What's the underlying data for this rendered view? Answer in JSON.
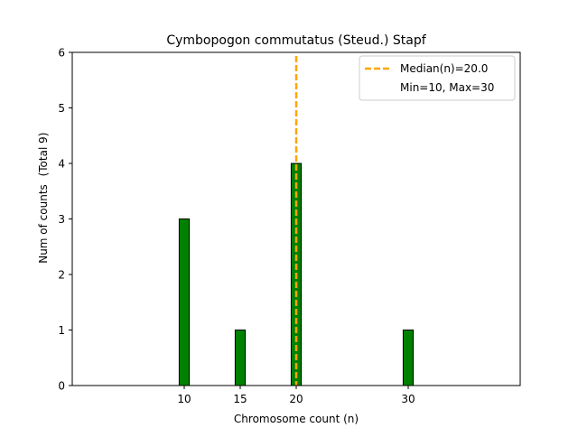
{
  "chart_data": {
    "type": "bar",
    "title": "Cymbopogon commutatus (Steud.) Stapf",
    "xlabel": "Chromosome count (n)",
    "ylabel": "Num of counts",
    "ylabel_extra": "(Total 9)",
    "xlim": [
      0,
      40
    ],
    "ylim": [
      0,
      6
    ],
    "x_ticks": [
      10,
      15,
      20,
      30
    ],
    "y_ticks": [
      0,
      1,
      2,
      3,
      4,
      5,
      6
    ],
    "bar_width": 0.9,
    "bars": [
      {
        "x": 10,
        "value": 3
      },
      {
        "x": 15,
        "value": 1
      },
      {
        "x": 20,
        "value": 4
      },
      {
        "x": 30,
        "value": 1
      }
    ],
    "median": 20.0,
    "hist_extent": [
      10,
      33.5
    ],
    "legend": {
      "position": "top-right",
      "entries": [
        "Median(n)=20.0",
        "Min=10, Max=30"
      ]
    },
    "colors": {
      "bar_fill": "#008000",
      "bar_edge": "#000000",
      "median_line": "#ffa500"
    }
  }
}
